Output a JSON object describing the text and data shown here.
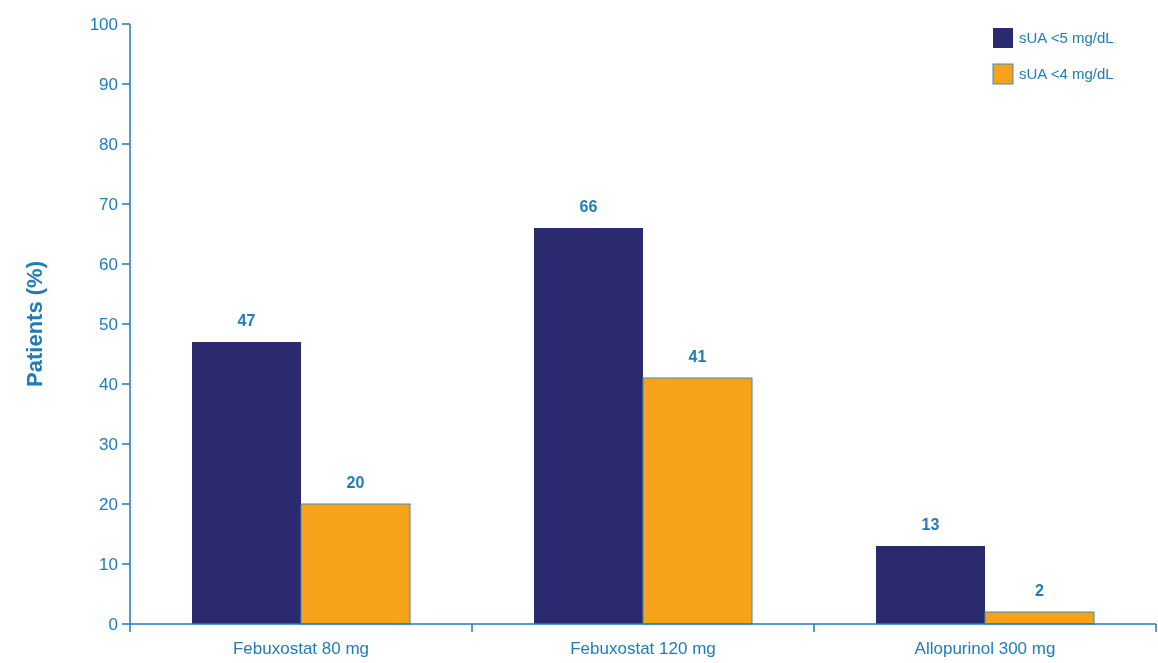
{
  "chart_data": {
    "type": "bar",
    "categories": [
      "Febuxostat 80 mg",
      "Febuxostat 120 mg",
      "Allopurinol 300 mg"
    ],
    "series": [
      {
        "name": "sUA <5 mg/dL",
        "color": "#2b2a6e",
        "values": [
          47,
          66,
          13
        ]
      },
      {
        "name": "sUA <4 mg/dL",
        "color": "#f7a21b",
        "values": [
          20,
          41,
          2
        ]
      }
    ],
    "ylabel": "Patients (%)",
    "ylim": [
      0,
      100
    ],
    "yticks": [
      0,
      10,
      20,
      30,
      40,
      50,
      60,
      70,
      80,
      90,
      100
    ],
    "data_labels": true,
    "legend": "top right",
    "grid": false
  }
}
